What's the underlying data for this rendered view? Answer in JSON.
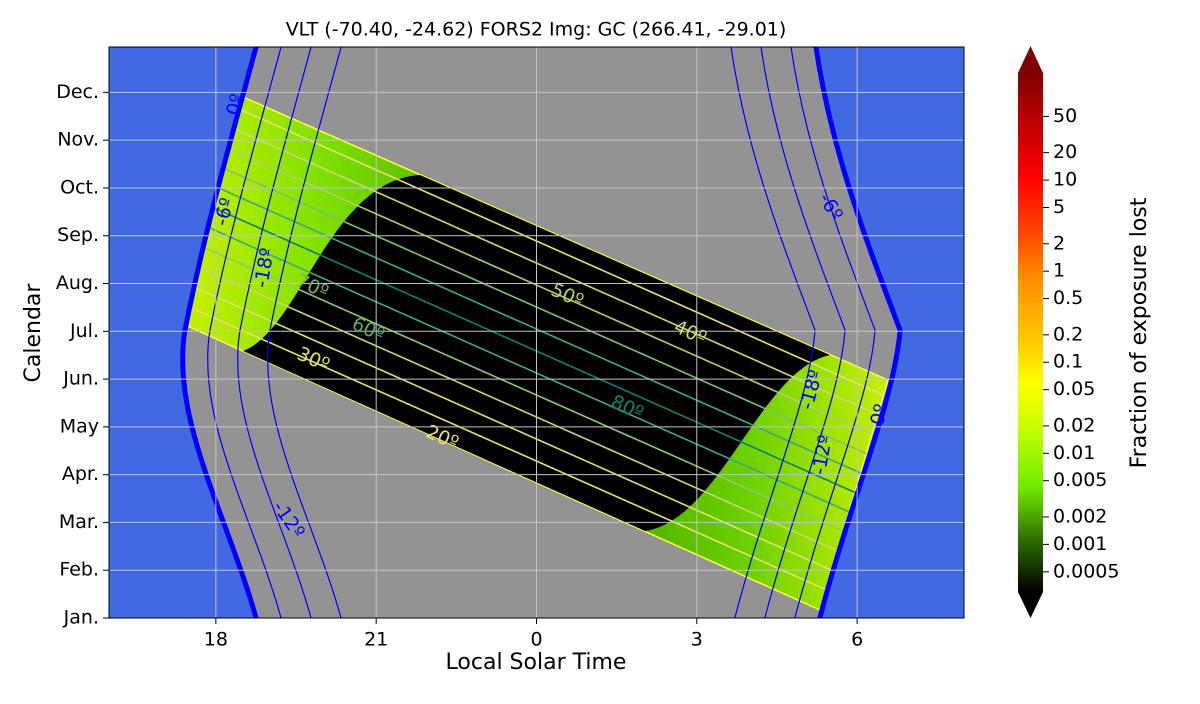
{
  "chart_data": {
    "type": "heatmap",
    "title": "VLT (-70.40, -24.62) FORS2 Img: GC (266.41, -29.01)",
    "x_label": "Local Solar Time",
    "y_label": "Calendar",
    "xlim": [
      16,
      32
    ],
    "xticks": [
      18,
      21,
      {
        "value": 24,
        "label": "0"
      },
      {
        "value": 27,
        "label": "3"
      },
      {
        "value": 30,
        "label": "6"
      }
    ],
    "ylim": [
      0,
      11.95
    ],
    "yticks": [
      {
        "value": 0,
        "label": "Jan."
      },
      {
        "value": 1,
        "label": "Feb."
      },
      {
        "value": 2,
        "label": "Mar."
      },
      {
        "value": 3,
        "label": "Apr."
      },
      {
        "value": 4,
        "label": "May"
      },
      {
        "value": 5,
        "label": "Jun."
      },
      {
        "value": 6,
        "label": "Jul."
      },
      {
        "value": 7,
        "label": "Aug."
      },
      {
        "value": 8,
        "label": "Sep."
      },
      {
        "value": 9,
        "label": "Oct."
      },
      {
        "value": 10,
        "label": "Nov."
      },
      {
        "value": 11,
        "label": "Dec."
      }
    ],
    "grid": true,
    "colorbar": {
      "label": "Fraction of exposure lost",
      "scale": "log",
      "lim": [
        0.0003,
        150
      ],
      "ticks": [
        50,
        20,
        10,
        5,
        2,
        1,
        0.5,
        0.2,
        0.1,
        0.05,
        0.02,
        0.01,
        0.005,
        0.002,
        0.001,
        0.0005
      ],
      "colormap": [
        "#000000",
        "#2d6e00",
        "#6fe800",
        "#b8ff00",
        "#ffff00",
        "#ffc000",
        "#ff9000",
        "#ff4000",
        "#ff0000",
        "#c00000",
        "#800000"
      ]
    },
    "twilight_contours": {
      "color": "#0000ff",
      "labels": [
        "0º",
        "-6º",
        "-18º",
        "-12º",
        "-6º",
        "-18º",
        "-12º",
        "0º"
      ]
    },
    "altitude_contours": {
      "labels": [
        "70º",
        "50º",
        "60º",
        "40º",
        "30º",
        "80º",
        "20º"
      ]
    }
  }
}
